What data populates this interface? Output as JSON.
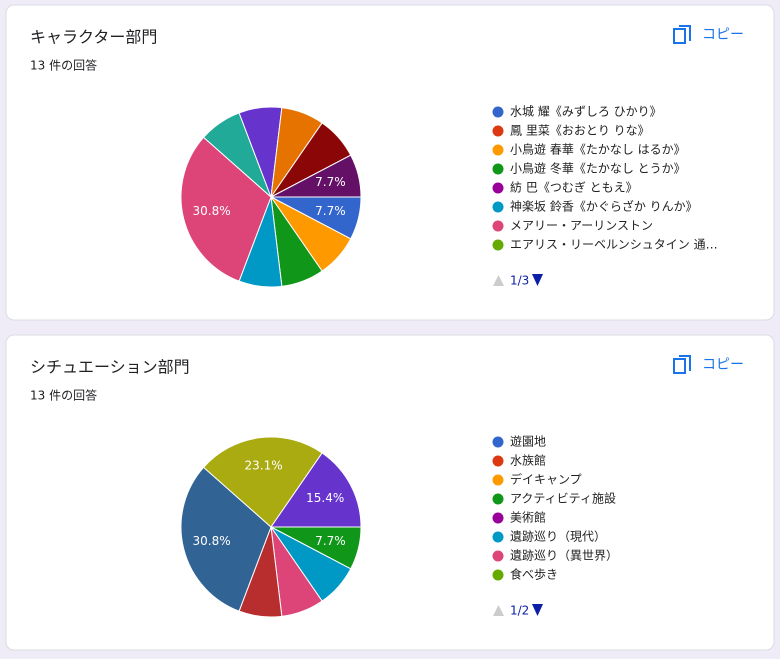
{
  "copy_label": "コピー",
  "chart_data": [
    {
      "type": "pie",
      "title": "キャラクター部門",
      "subtitle": "13 件の回答",
      "legend_page": "1/3",
      "categories": [
        "水城 耀《みずしろ ひかり》",
        "鳳 里菜《おおとり りな》",
        "小鳥遊 春華《たかなし はるか》",
        "小鳥遊 冬華《たかなし とうか》",
        "紡 巴《つむぎ ともえ》",
        "神楽坂 鈴香《かぐらざか りんか》",
        "メアリー・アーリンストン",
        "エアリス・リーベルンシュタイン 通…",
        null,
        null,
        null,
        null,
        null,
        null,
        null,
        null,
        null
      ],
      "colors": [
        "#3366cc",
        "#dc3912",
        "#ff9900",
        "#109618",
        "#990099",
        "#0099c6",
        "#dd4477",
        "#66aa00",
        "#b82e2e",
        "#316395",
        "#994499",
        "#22aa99",
        "#aaaa11",
        "#6633cc",
        "#e67300",
        "#8b0707",
        "#651067"
      ],
      "values": [
        7.7,
        0,
        7.7,
        7.7,
        0,
        7.7,
        30.8,
        0,
        0,
        0,
        0,
        7.7,
        0,
        7.7,
        7.7,
        7.7,
        7.7
      ],
      "value_labels": [
        "7.7%",
        null,
        null,
        null,
        null,
        null,
        "30.8%",
        null,
        null,
        null,
        null,
        null,
        null,
        null,
        null,
        null,
        "7.7%"
      ]
    },
    {
      "type": "pie",
      "title": "シチュエーション部門",
      "subtitle": "13 件の回答",
      "legend_page": "1/2",
      "categories": [
        "遊園地",
        "水族館",
        "デイキャンプ",
        "アクティビティ施設",
        "美術館",
        "遺跡巡り（現代）",
        "遺跡巡り（異世界）",
        "食べ歩き",
        null,
        null,
        null,
        null,
        null,
        null
      ],
      "colors": [
        "#3366cc",
        "#dc3912",
        "#ff9900",
        "#109618",
        "#990099",
        "#0099c6",
        "#dd4477",
        "#66aa00",
        "#b82e2e",
        "#316395",
        "#994499",
        "#22aa99",
        "#aaaa11",
        "#6633cc"
      ],
      "values": [
        0,
        0,
        0,
        7.7,
        0,
        7.7,
        7.7,
        0,
        7.7,
        30.8,
        0,
        0,
        23.1,
        15.4
      ],
      "value_labels": [
        null,
        null,
        null,
        "7.7%",
        null,
        null,
        null,
        null,
        null,
        "30.8%",
        null,
        null,
        "23.1%",
        "15.4%"
      ]
    }
  ]
}
